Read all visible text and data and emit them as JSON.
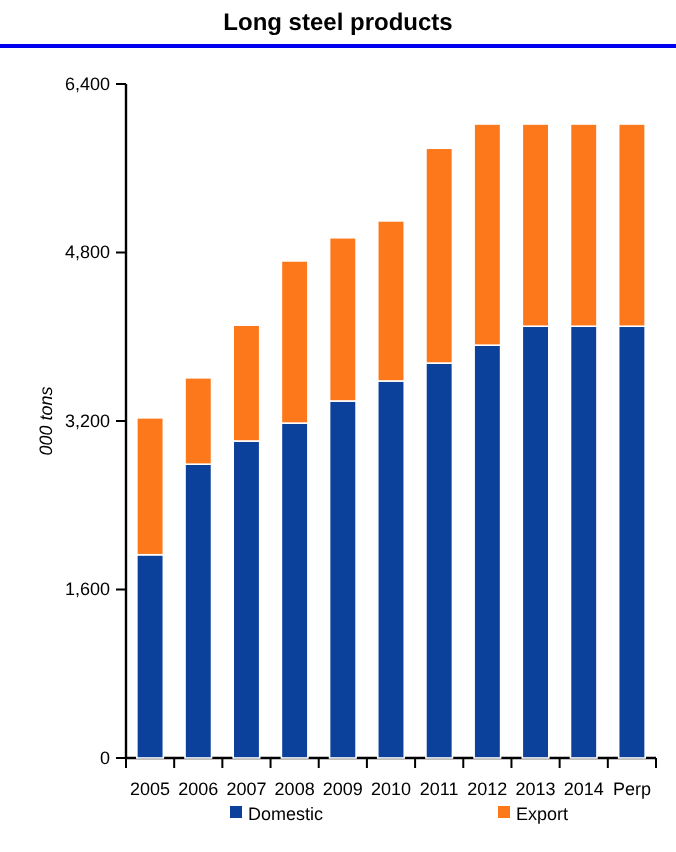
{
  "chart_data": {
    "type": "bar",
    "title": "Long steel products",
    "ylabel": "000 tons",
    "stacked": true,
    "legend": "bottom",
    "grid": false,
    "categories": [
      "2005",
      "2006",
      "2007",
      "2008",
      "2009",
      "2010",
      "2011",
      "2012",
      "2013",
      "2014",
      "Perp"
    ],
    "ylim": [
      0,
      6400
    ],
    "yticks": [
      0,
      {
        "value": 1600,
        "label": "1,600"
      },
      {
        "value": 3200,
        "label": "3,200"
      },
      {
        "value": 4800,
        "label": "4,800"
      },
      {
        "value": 6400,
        "label": "6,400"
      }
    ],
    "series": [
      {
        "name": "Domestic",
        "color": "#0b419b",
        "values": [
          1930,
          2790,
          3010,
          3180,
          3390,
          3580,
          3750,
          3920,
          4100,
          4100,
          4100
        ]
      },
      {
        "name": "Export",
        "color": "#fd781b",
        "values": [
          1300,
          820,
          1100,
          1540,
          1550,
          1520,
          2040,
          2100,
          1920,
          1920,
          1920
        ]
      }
    ]
  }
}
